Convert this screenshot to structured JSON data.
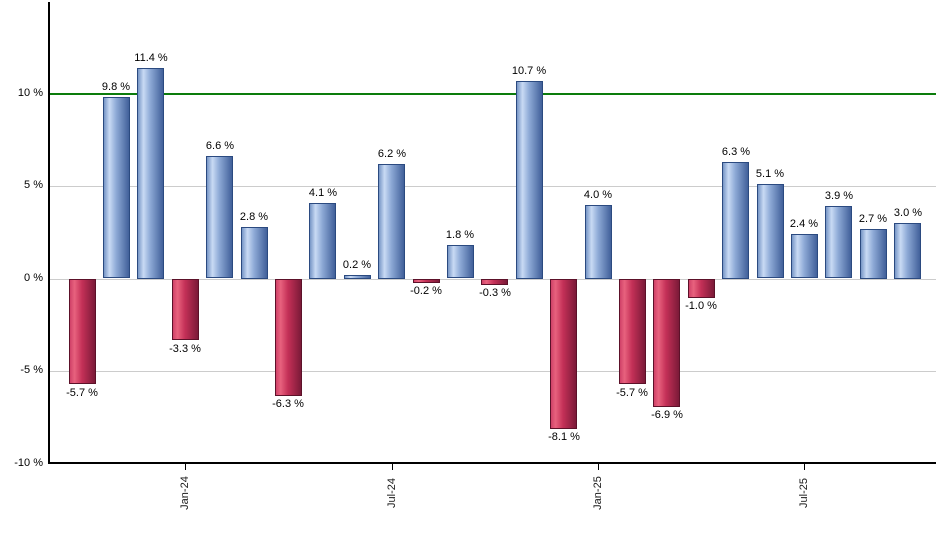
{
  "chart_data": {
    "type": "bar",
    "title": "",
    "xlabel": "",
    "ylabel": "",
    "unit": "%",
    "ylim": [
      -10,
      15
    ],
    "grid": true,
    "gridline_interval": 5,
    "legend": "none",
    "values": [
      -5.7,
      9.8,
      11.4,
      -3.3,
      6.6,
      2.8,
      -6.3,
      4.1,
      0.2,
      6.2,
      -0.2,
      1.8,
      -0.3,
      10.7,
      -8.1,
      4.0,
      -5.7,
      -6.9,
      -1.0,
      6.3,
      5.1,
      2.4,
      3.9,
      2.7,
      3.0
    ],
    "value_label_suffix": " %",
    "x_ticks": [
      {
        "label": "Jan-24",
        "bar_index": 3
      },
      {
        "label": "Jul-24",
        "bar_index": 9
      },
      {
        "label": "Jan-25",
        "bar_index": 15
      },
      {
        "label": "Jul-25",
        "bar_index": 21
      }
    ],
    "y_ticks": [
      {
        "label": "10 %",
        "value": 10
      },
      {
        "label": "5 %",
        "value": 5
      },
      {
        "label": "0 %",
        "value": 0
      },
      {
        "label": "-5 %",
        "value": -5
      },
      {
        "label": "-10 %",
        "value": -10
      }
    ],
    "reference_line": {
      "value": 10
    },
    "colors": {
      "positive_bar_edge": "#7796c6",
      "positive_bar_highlight": "#c9daf4",
      "positive_bar_mid": "#8fabd7",
      "positive_bar_dark": "#41609a",
      "positive_bar_border": "#2b4a80",
      "negative_bar_edge": "#cf4168",
      "negative_bar_highlight": "#e8627e",
      "negative_bar_mid": "#c43057",
      "negative_bar_dark": "#7b1a38",
      "negative_bar_border": "#5c1129",
      "gridline": "#cccccc",
      "reference_line": "#0c7c0c",
      "axis": "#000000",
      "text": "#000000"
    }
  }
}
